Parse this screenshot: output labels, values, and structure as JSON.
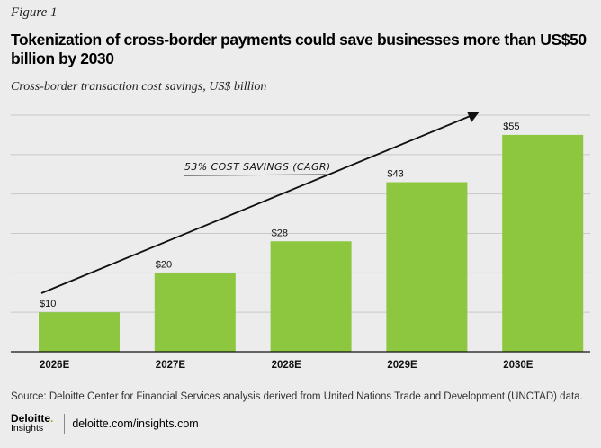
{
  "figure_label": "Figure 1",
  "title": "Tokenization of cross-border payments could save businesses more than US$50 billion by 2030",
  "subtitle": "Cross-border transaction cost savings, US$ billion",
  "chart_data": {
    "type": "bar",
    "categories": [
      "2026E",
      "2027E",
      "2028E",
      "2029E",
      "2030E"
    ],
    "values": [
      10,
      20,
      28,
      43,
      55
    ],
    "value_labels": [
      "$10",
      "$20",
      "$28",
      "$43",
      "$55"
    ],
    "ylim": [
      0,
      60
    ],
    "y_gridlines": [
      0,
      10,
      20,
      30,
      40,
      50,
      60
    ],
    "annotation": "53% COST SAVINGS (CAGR)",
    "bar_color": "#8dc63f",
    "grid": true
  },
  "source": "Source: Deloitte Center for Financial Services analysis derived from United Nations Trade and Development (UNCTAD) data.",
  "footer": {
    "logo_name": "Deloitte",
    "logo_dot": ".",
    "logo_sub": "Insights",
    "url": "deloitte.com/insights.com"
  }
}
